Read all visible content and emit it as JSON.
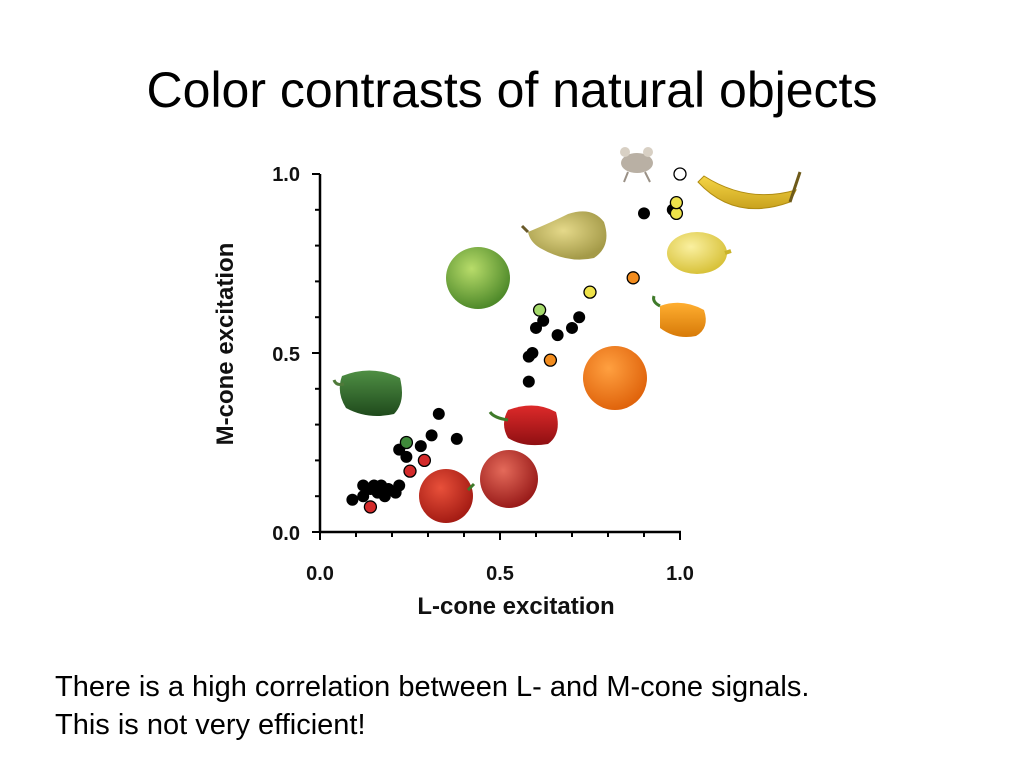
{
  "slide": {
    "title": "Color contrasts of natural objects",
    "body_lines": [
      "There is a high correlation between L- and M-cone signals.",
      "This is not very efficient!"
    ]
  },
  "chart_data": {
    "type": "scatter",
    "xlabel": "L-cone excitation",
    "ylabel": "M-cone excitation",
    "xlim": [
      0.0,
      1.0
    ],
    "ylim": [
      0.0,
      1.0
    ],
    "x_ticks": [
      "0.0",
      "0.5",
      "1.0"
    ],
    "y_ticks": [
      "0.0",
      "0.5",
      "1.0"
    ],
    "grid": false,
    "legend": "none",
    "series": [
      {
        "color": "#000000",
        "points": [
          [
            0.09,
            0.09
          ],
          [
            0.12,
            0.1
          ],
          [
            0.12,
            0.13
          ],
          [
            0.14,
            0.12
          ],
          [
            0.15,
            0.13
          ],
          [
            0.16,
            0.11
          ],
          [
            0.17,
            0.13
          ],
          [
            0.18,
            0.1
          ],
          [
            0.19,
            0.12
          ],
          [
            0.21,
            0.11
          ],
          [
            0.22,
            0.13
          ],
          [
            0.22,
            0.23
          ],
          [
            0.24,
            0.21
          ],
          [
            0.28,
            0.24
          ],
          [
            0.31,
            0.27
          ],
          [
            0.33,
            0.33
          ],
          [
            0.38,
            0.26
          ],
          [
            0.58,
            0.42
          ],
          [
            0.58,
            0.49
          ],
          [
            0.59,
            0.5
          ],
          [
            0.6,
            0.57
          ],
          [
            0.62,
            0.59
          ],
          [
            0.66,
            0.55
          ],
          [
            0.7,
            0.57
          ],
          [
            0.72,
            0.6
          ],
          [
            0.9,
            0.89
          ],
          [
            0.98,
            0.9
          ]
        ]
      },
      {
        "color": "#d32a2a",
        "points": [
          [
            0.14,
            0.07
          ],
          [
            0.25,
            0.17
          ],
          [
            0.29,
            0.2
          ]
        ]
      },
      {
        "color": "#3f8a3a",
        "points": [
          [
            0.24,
            0.25
          ]
        ]
      },
      {
        "color": "#a4d96a",
        "points": [
          [
            0.61,
            0.62
          ]
        ]
      },
      {
        "color": "#f28c1e",
        "points": [
          [
            0.64,
            0.48
          ],
          [
            0.87,
            0.71
          ]
        ]
      },
      {
        "color": "#eee24a",
        "points": [
          [
            0.75,
            0.67
          ],
          [
            0.99,
            0.89
          ],
          [
            0.99,
            0.92
          ]
        ]
      },
      {
        "color": "#ffffff",
        "points": [
          [
            1.0,
            1.0
          ]
        ]
      }
    ],
    "object_images": [
      "mouse",
      "banana",
      "pear",
      "apple",
      "lemon",
      "orange-pepper",
      "orange",
      "green-pepper",
      "red-pepper",
      "red-apple",
      "tomato"
    ]
  }
}
